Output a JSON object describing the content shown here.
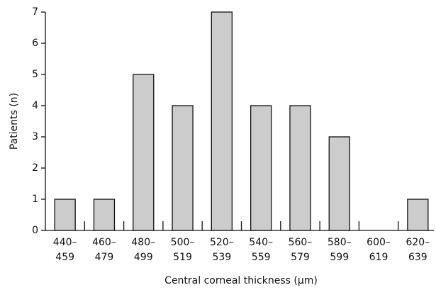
{
  "chart_data": {
    "type": "bar",
    "x_label": "Central corneal thickness (μm)",
    "y_label": "Patients (n)",
    "categories": [
      "440–\n459",
      "460–\n479",
      "480–\n499",
      "500–\n519",
      "520–\n539",
      "540–\n559",
      "560–\n579",
      "580–\n599",
      "600–\n619",
      "620–\n639"
    ],
    "values": [
      1,
      1,
      5,
      4,
      7,
      4,
      4,
      3,
      0,
      1
    ],
    "color": "#cccccc",
    "ylim": [
      0,
      7
    ],
    "yticks": [
      0,
      1,
      2,
      3,
      4,
      5,
      6,
      7
    ],
    "grid": false
  }
}
